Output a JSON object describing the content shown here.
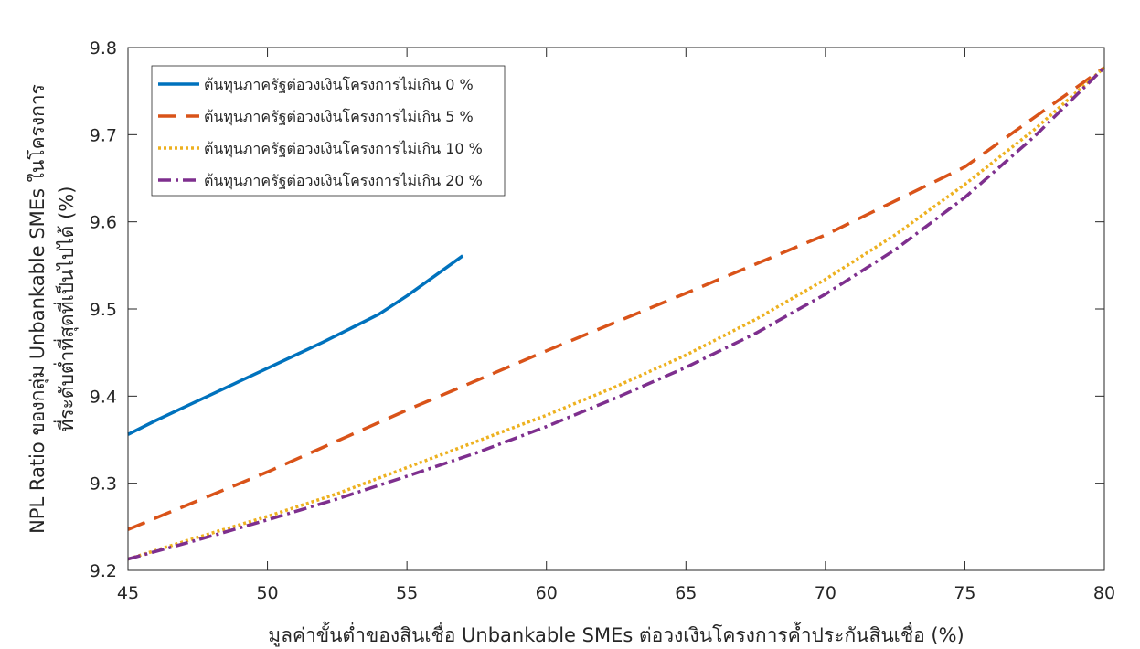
{
  "chart_data": {
    "type": "line",
    "title": "",
    "xlabel": "มูลค่าขั้นต่ำของสินเชื่อ Unbankable SMEs ต่อวงเงินโครงการค้ำประกันสินเชื่อ (%)",
    "ylabel": [
      "NPL Ratio ของกลุ่ม Unbankable SMEs ในโครงการ",
      "ที่ระดับต่ำที่สุดที่เป็นไปได้ (%)"
    ],
    "xlim": [
      45,
      80
    ],
    "ylim": [
      9.2,
      9.8
    ],
    "xticks": [
      45,
      50,
      55,
      60,
      65,
      70,
      75,
      80
    ],
    "yticks": [
      9.2,
      9.3,
      9.4,
      9.5,
      9.6,
      9.7,
      9.8
    ],
    "xtick_labels": [
      "45",
      "50",
      "55",
      "60",
      "65",
      "70",
      "75",
      "80"
    ],
    "ytick_labels": [
      "9.2",
      "9.3",
      "9.4",
      "9.5",
      "9.6",
      "9.7",
      "9.8"
    ],
    "grid": false,
    "legend_position": "top-left",
    "series": [
      {
        "name": "ต้นทุนภาครัฐต่อวงเงินโครงการไม่เกิน 0 %",
        "color": "#0072BD",
        "dash": "solid",
        "x": [
          45,
          46,
          47,
          48,
          49,
          50,
          51,
          52,
          53,
          54,
          55,
          56,
          57
        ],
        "y": [
          9.356,
          9.372,
          9.387,
          9.402,
          9.417,
          9.432,
          9.447,
          9.462,
          9.478,
          9.494,
          9.515,
          9.538,
          9.561
        ]
      },
      {
        "name": "ต้นทุนภาครัฐต่อวงเงินโครงการไม่เกิน 5 %",
        "color": "#D95319",
        "dash": "dashed",
        "x": [
          45,
          50,
          55,
          60,
          65,
          70,
          75,
          80
        ],
        "y": [
          9.247,
          9.313,
          9.384,
          9.452,
          9.518,
          9.585,
          9.663,
          9.777
        ]
      },
      {
        "name": "ต้นทุนภาครัฐต่อวงเงินโครงการไม่เกิน 10 %",
        "color": "#EDB120",
        "dash": "dotted",
        "x": [
          45,
          47.5,
          50,
          52.5,
          55,
          57.5,
          60,
          62.5,
          65,
          67.5,
          70,
          72.5,
          75,
          77.5,
          80
        ],
        "y": [
          9.213,
          9.238,
          9.262,
          9.288,
          9.318,
          9.348,
          9.378,
          9.411,
          9.447,
          9.488,
          9.534,
          9.585,
          9.643,
          9.706,
          9.777
        ]
      },
      {
        "name": "ต้นทุนภาครัฐต่อวงเงินโครงการไม่เกิน 20 %",
        "color": "#7E2F8E",
        "dash": "dashdot",
        "x": [
          45,
          47.5,
          50,
          52.5,
          55,
          57.5,
          60,
          62.5,
          65,
          67.5,
          70,
          72.5,
          75,
          77.5,
          80
        ],
        "y": [
          9.213,
          9.235,
          9.258,
          9.282,
          9.308,
          9.335,
          9.365,
          9.398,
          9.433,
          9.472,
          9.517,
          9.568,
          9.628,
          9.698,
          9.777
        ]
      }
    ]
  }
}
